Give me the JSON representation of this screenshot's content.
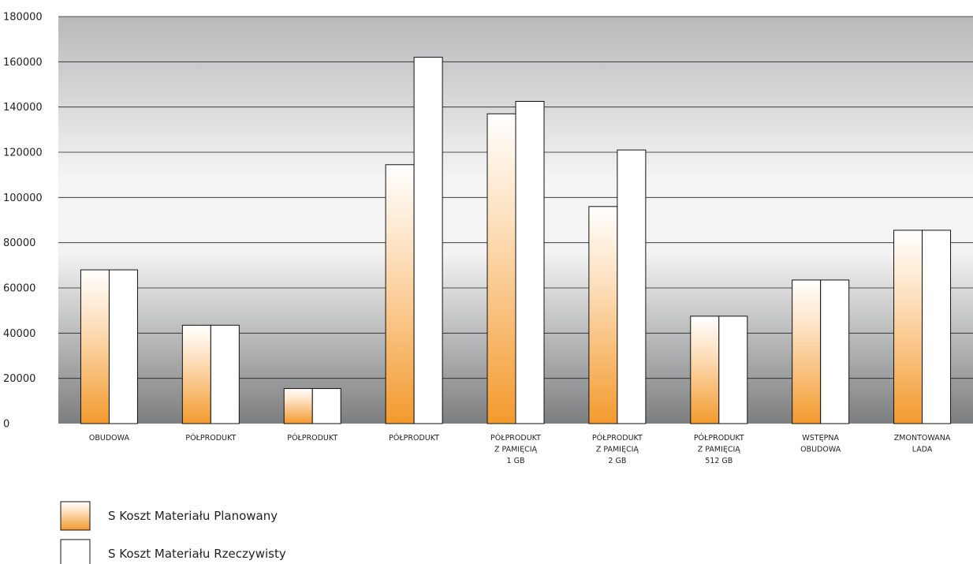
{
  "chart_data": {
    "type": "bar",
    "title": "",
    "xlabel": "",
    "ylabel": "",
    "ylim": [
      0,
      180000
    ],
    "yticks": [
      0,
      20000,
      40000,
      60000,
      80000,
      100000,
      120000,
      140000,
      160000,
      180000
    ],
    "ytick_labels": [
      "0",
      "20000",
      "40000",
      "60000",
      "80000",
      "100000",
      "120000",
      "140000",
      "160000",
      "180000"
    ],
    "grid": true,
    "legend_position": "bottom-left",
    "categories": [
      [
        "OBUDOWA"
      ],
      [
        "PÓŁPRODUKT"
      ],
      [
        "PÓŁPRODUKT"
      ],
      [
        "PÓŁPRODUKT"
      ],
      [
        "PÓŁPRODUKT",
        "Z PAMIĘCIĄ",
        "1 GB"
      ],
      [
        "PÓŁPRODUKT",
        "Z PAMIĘCIĄ",
        "2 GB"
      ],
      [
        "PÓŁPRODUKT",
        "Z PAMIĘCIĄ",
        "512 GB"
      ],
      [
        "WSTĘPNA",
        "OBUDOWA"
      ],
      [
        "ZMONTOWANA",
        "LADA"
      ]
    ],
    "series": [
      {
        "name": "S Koszt Materiału Planowany",
        "color": "#f39a2e",
        "values": [
          68000,
          43500,
          15500,
          114500,
          137000,
          96000,
          47500,
          63500,
          85500
        ]
      },
      {
        "name": "S Koszt Materiału Rzeczywisty",
        "color": "#ffffff",
        "values": [
          68000,
          43500,
          15500,
          162000,
          142500,
          121000,
          47500,
          63500,
          85500
        ]
      }
    ]
  }
}
